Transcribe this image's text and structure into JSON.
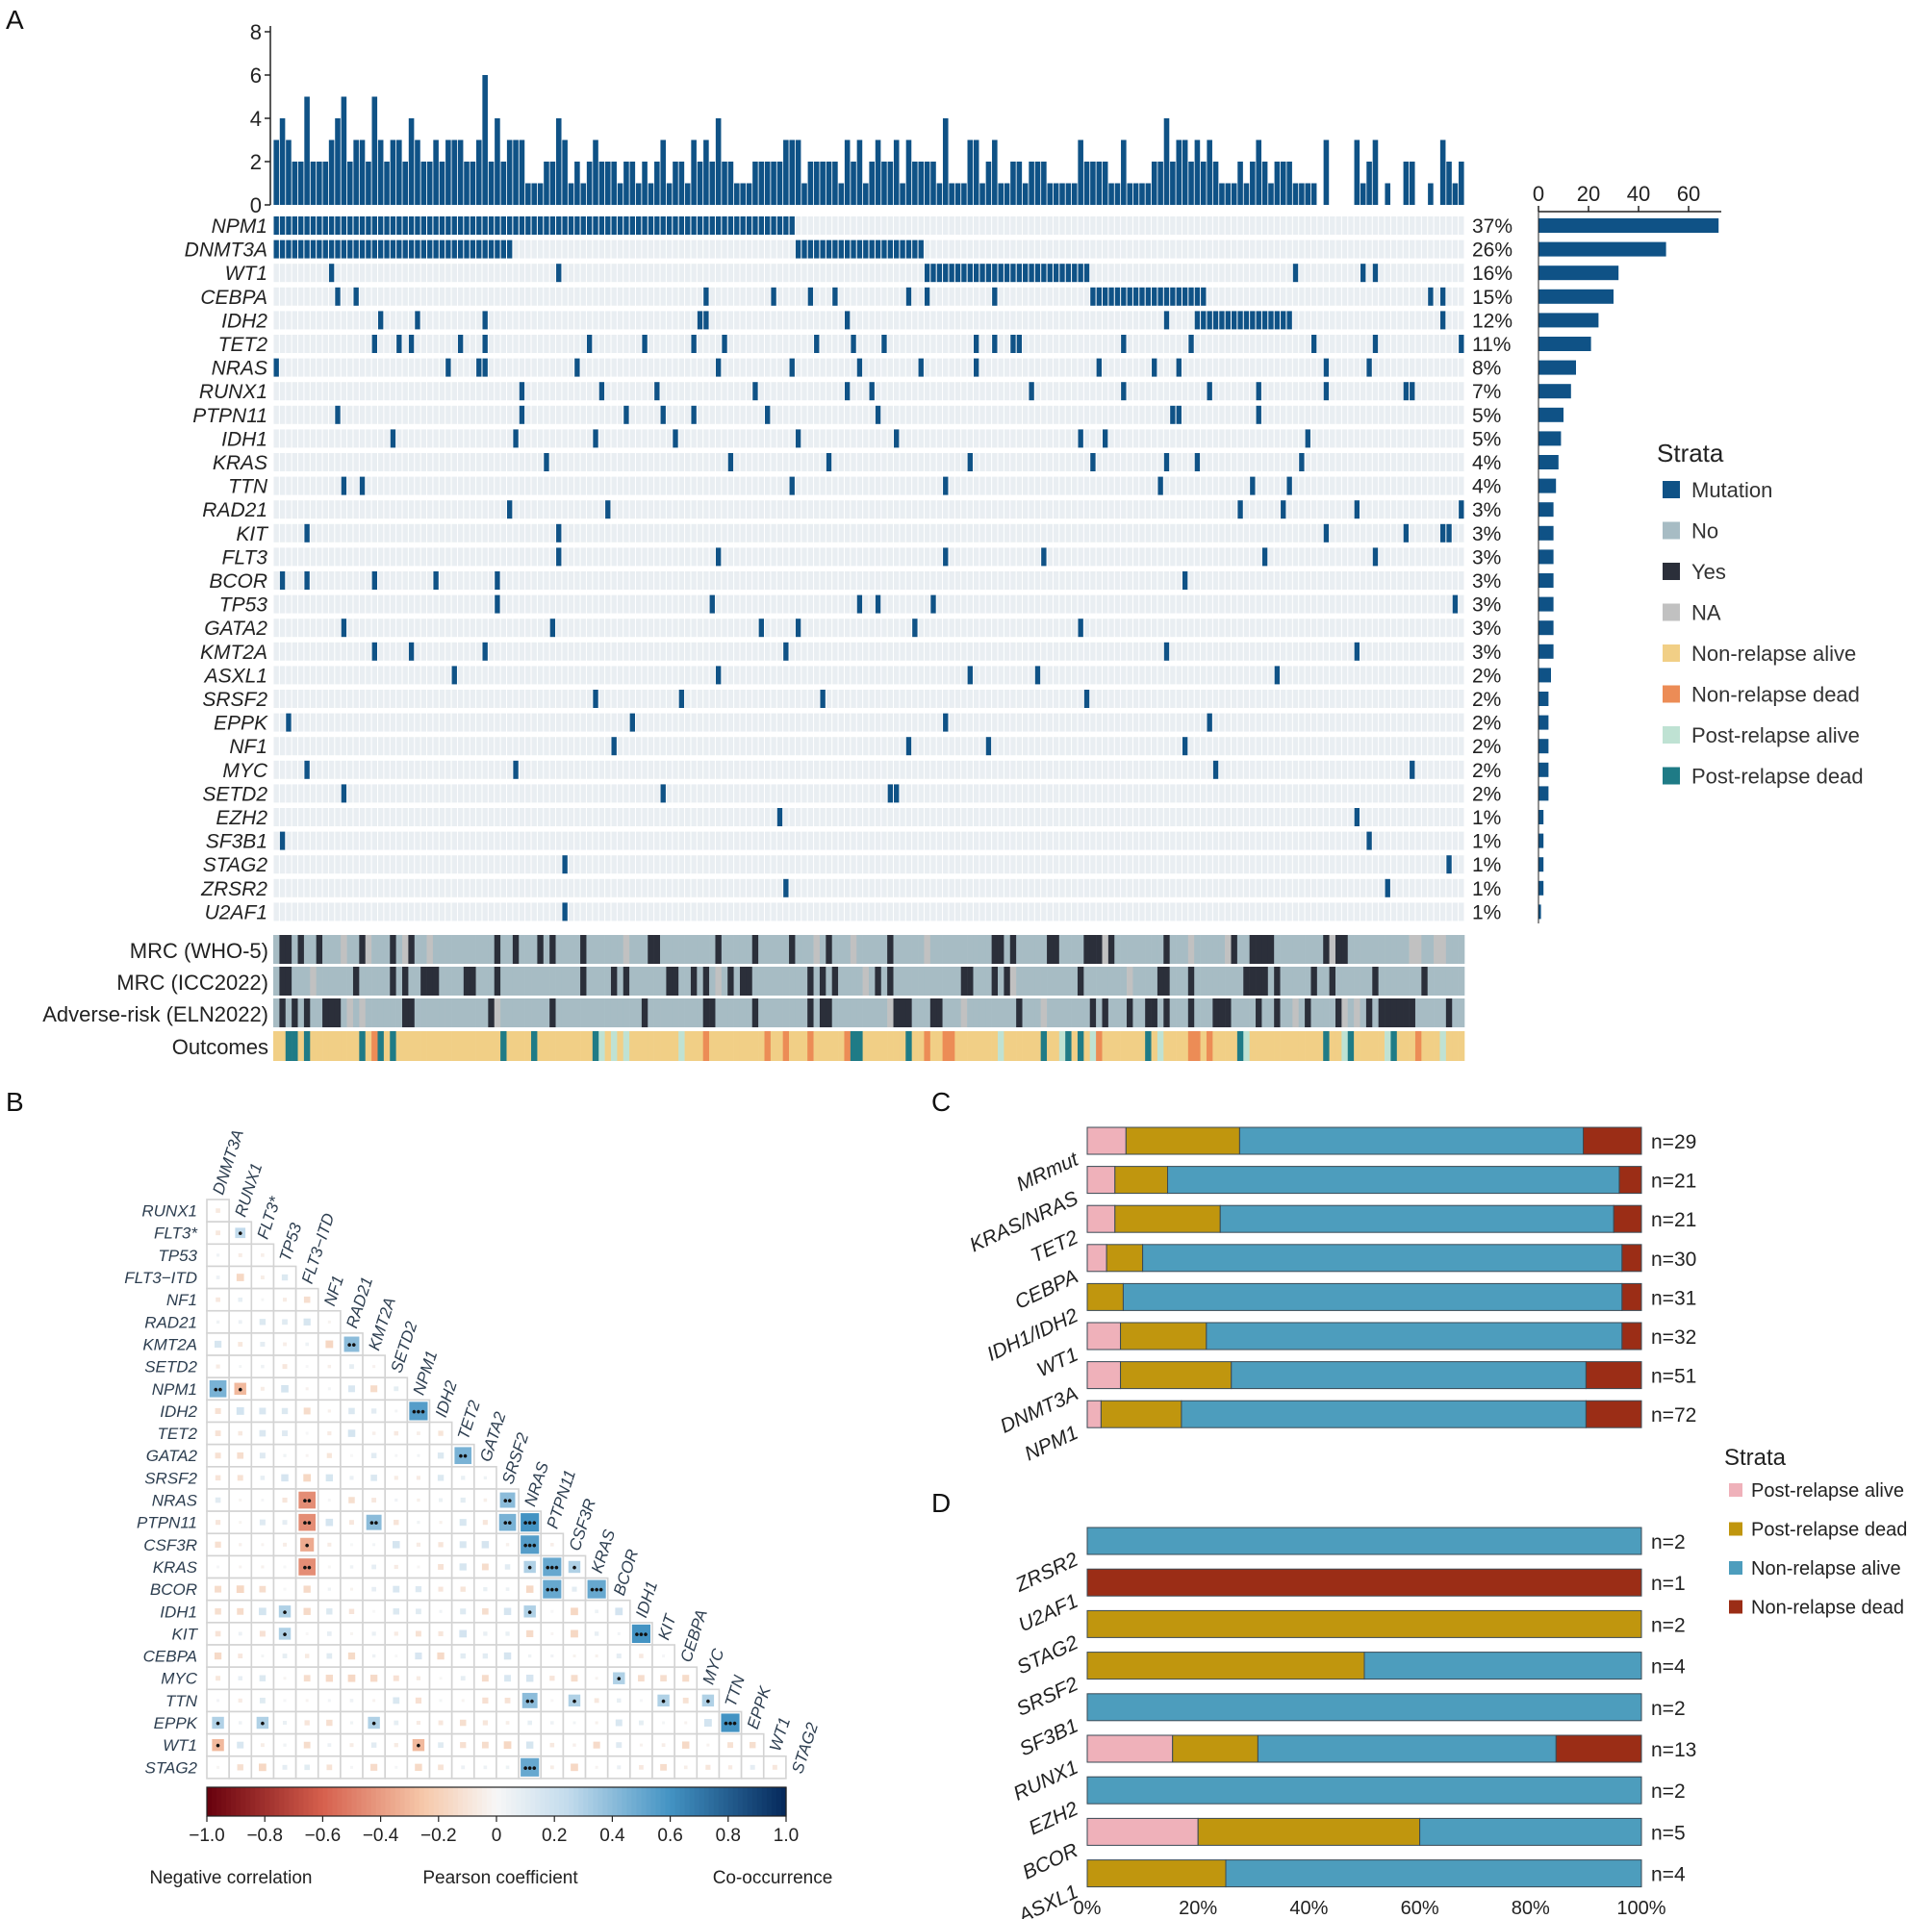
{
  "colors": {
    "mutation": "#0f5286",
    "no": "#a7bcc4",
    "yes": "#2b2f3a",
    "na": "#c1c1c1",
    "nonrelapse_alive_A": "#f1cf86",
    "nonrelapse_dead_A": "#ec8c56",
    "postrelapse_alive_A": "#bfe2d3",
    "postrelapse_dead_A": "#1f7b86",
    "empty_cell": "#e9eef2",
    "post_alive": "#efb1ba",
    "post_dead": "#c0960e",
    "non_alive": "#4d9dbd",
    "non_dead": "#9b2d16"
  },
  "panel_labels": [
    "A",
    "B",
    "C",
    "D"
  ],
  "panelA": {
    "tmb_axis_ticks": [
      "0",
      "2",
      "4",
      "6",
      "8"
    ],
    "freq_axis_ticks": [
      "0",
      "20",
      "40",
      "60"
    ],
    "genes": [
      "NPM1",
      "DNMT3A",
      "WT1",
      "CEBPA",
      "IDH2",
      "TET2",
      "NRAS",
      "RUNX1",
      "PTPN11",
      "IDH1",
      "KRAS",
      "TTN",
      "RAD21",
      "KIT",
      "FLT3",
      "BCOR",
      "TP53",
      "GATA2",
      "KMT2A",
      "ASXL1",
      "SRSF2",
      "EPPK",
      "NF1",
      "MYC",
      "SETD2",
      "EZH2",
      "SF3B1",
      "STAG2",
      "ZRSR2",
      "U2AF1"
    ],
    "percents": [
      "37%",
      "26%",
      "16%",
      "15%",
      "12%",
      "11%",
      "8%",
      "7%",
      "5%",
      "5%",
      "4%",
      "4%",
      "3%",
      "3%",
      "3%",
      "3%",
      "3%",
      "3%",
      "3%",
      "2%",
      "2%",
      "2%",
      "2%",
      "2%",
      "2%",
      "1%",
      "1%",
      "1%",
      "1%",
      "1%"
    ],
    "counts": [
      72,
      51,
      32,
      30,
      24,
      21,
      15,
      13,
      10,
      9,
      8,
      7,
      6,
      6,
      6,
      6,
      6,
      6,
      6,
      5,
      4,
      4,
      4,
      4,
      4,
      2,
      2,
      2,
      2,
      1
    ],
    "annotation_rows": [
      "MRC (WHO-5)",
      "MRC (ICC2022)",
      "Adverse-risk (ELN2022)",
      "Outcomes"
    ],
    "legend": {
      "title": "Strata",
      "items": [
        "Mutation",
        "No",
        "Yes",
        "NA",
        "Non-relapse alive",
        "Non-relapse dead",
        "Post-relapse alive",
        "Post-relapse dead"
      ]
    }
  },
  "panelB": {
    "genes": [
      "DNMT3A",
      "RUNX1",
      "FLT3*",
      "TP53",
      "FLT3−ITD",
      "NF1",
      "RAD21",
      "KMT2A",
      "SETD2",
      "NPM1",
      "IDH2",
      "TET2",
      "GATA2",
      "SRSF2",
      "NRAS",
      "PTPN11",
      "CSF3R",
      "KRAS",
      "BCOR",
      "IDH1",
      "KIT",
      "CEBPA",
      "MYC",
      "TTN",
      "EPPK",
      "WT1",
      "STAG2"
    ],
    "colorbar_ticks": [
      "−1.0",
      "−0.8",
      "−0.6",
      "−0.4",
      "−0.2",
      "0",
      "0.2",
      "0.4",
      "0.6",
      "0.8",
      "1.0"
    ],
    "caption_left": "Negative correlation",
    "caption_mid": "Pearson coefficient",
    "caption_right": "Co-occurrence",
    "sig_cells": [
      {
        "r": "NPM1",
        "c": "DNMT3A",
        "v": 0.45,
        "s": "••"
      },
      {
        "r": "NPM1",
        "c": "RUNX1",
        "v": -0.3,
        "s": "•"
      },
      {
        "r": "FLT3*",
        "c": "RUNX1",
        "v": 0.25,
        "s": "•"
      },
      {
        "r": "KMT2A",
        "c": "RAD21",
        "v": 0.4,
        "s": "••"
      },
      {
        "r": "IDH2",
        "c": "NPM1",
        "v": 0.55,
        "s": "•••"
      },
      {
        "r": "GATA2",
        "c": "TET2",
        "v": 0.45,
        "s": "••"
      },
      {
        "r": "NRAS",
        "c": "FLT3−ITD",
        "v": -0.45,
        "s": "••"
      },
      {
        "r": "NRAS",
        "c": "SRSF2",
        "v": 0.4,
        "s": "••"
      },
      {
        "r": "PTPN11",
        "c": "FLT3−ITD",
        "v": -0.45,
        "s": "••"
      },
      {
        "r": "PTPN11",
        "c": "KMT2A",
        "v": 0.4,
        "s": "••"
      },
      {
        "r": "PTPN11",
        "c": "SRSF2",
        "v": 0.45,
        "s": "••"
      },
      {
        "r": "PTPN11",
        "c": "NRAS",
        "v": 0.6,
        "s": "•••"
      },
      {
        "r": "CSF3R",
        "c": "FLT3−ITD",
        "v": -0.35,
        "s": "•"
      },
      {
        "r": "CSF3R",
        "c": "NRAS",
        "v": 0.55,
        "s": "•••"
      },
      {
        "r": "KRAS",
        "c": "FLT3−ITD",
        "v": -0.45,
        "s": "••"
      },
      {
        "r": "KRAS",
        "c": "NRAS",
        "v": 0.3,
        "s": "•"
      },
      {
        "r": "KRAS",
        "c": "PTPN11",
        "v": 0.5,
        "s": "•••"
      },
      {
        "r": "KRAS",
        "c": "CSF3R",
        "v": 0.3,
        "s": "•"
      },
      {
        "r": "BCOR",
        "c": "PTPN11",
        "v": 0.5,
        "s": "•••"
      },
      {
        "r": "BCOR",
        "c": "KRAS",
        "v": 0.5,
        "s": "•••"
      },
      {
        "r": "IDH1",
        "c": "TP53",
        "v": 0.3,
        "s": "•"
      },
      {
        "r": "IDH1",
        "c": "NRAS",
        "v": 0.3,
        "s": "•"
      },
      {
        "r": "KIT",
        "c": "TP53",
        "v": 0.3,
        "s": "•"
      },
      {
        "r": "KIT",
        "c": "IDH1",
        "v": 0.6,
        "s": "•••"
      },
      {
        "r": "MYC",
        "c": "BCOR",
        "v": 0.3,
        "s": "•"
      },
      {
        "r": "TTN",
        "c": "NRAS",
        "v": 0.4,
        "s": "••"
      },
      {
        "r": "TTN",
        "c": "CSF3R",
        "v": 0.3,
        "s": "•"
      },
      {
        "r": "TTN",
        "c": "KIT",
        "v": 0.3,
        "s": "•"
      },
      {
        "r": "TTN",
        "c": "MYC",
        "v": 0.3,
        "s": "•"
      },
      {
        "r": "EPPK",
        "c": "DNMT3A",
        "v": 0.3,
        "s": "•"
      },
      {
        "r": "EPPK",
        "c": "FLT3*",
        "v": 0.3,
        "s": "•"
      },
      {
        "r": "EPPK",
        "c": "KMT2A",
        "v": 0.3,
        "s": "•"
      },
      {
        "r": "EPPK",
        "c": "TTN",
        "v": 0.6,
        "s": "•••"
      },
      {
        "r": "WT1",
        "c": "DNMT3A",
        "v": -0.3,
        "s": "•"
      },
      {
        "r": "WT1",
        "c": "NPM1",
        "v": -0.3,
        "s": "•"
      },
      {
        "r": "STAG2",
        "c": "NRAS",
        "v": 0.5,
        "s": "•••"
      }
    ]
  },
  "panelC": {
    "type": "bar",
    "stacked": true,
    "categories": [
      "MRmut",
      "KRAS/NRAS",
      "TET2",
      "CEBPA",
      "IDH1/IDH2",
      "WT1",
      "DNMT3A",
      "NPM1"
    ],
    "n_labels": [
      "n=29",
      "n=21",
      "n=21",
      "n=30",
      "n=31",
      "n=32",
      "n=51",
      "n=72"
    ],
    "series": [
      {
        "name": "Post-relapse alive",
        "values": [
          7,
          5,
          5,
          3.5,
          0,
          6,
          6,
          2.5
        ]
      },
      {
        "name": "Post-relapse dead",
        "values": [
          20.5,
          9.5,
          19,
          6.5,
          6.5,
          15.5,
          20,
          14.5
        ]
      },
      {
        "name": "Non-relapse alive",
        "values": [
          62,
          81.5,
          71,
          86.5,
          90,
          75,
          64,
          73
        ]
      },
      {
        "name": "Non-relapse dead",
        "values": [
          10.5,
          4,
          5,
          3.5,
          3.5,
          3.5,
          10,
          10
        ]
      }
    ]
  },
  "panelD": {
    "type": "bar",
    "stacked": true,
    "categories": [
      "ZRSR2",
      "U2AF1",
      "STAG2",
      "SRSF2",
      "SF3B1",
      "RUNX1",
      "EZH2",
      "BCOR",
      "ASXL1"
    ],
    "n_labels": [
      "n=2",
      "n=1",
      "n=2",
      "n=4",
      "n=2",
      "n=13",
      "n=2",
      "n=5",
      "n=4"
    ],
    "series": [
      {
        "name": "Post-relapse alive",
        "values": [
          0,
          0,
          0,
          0,
          0,
          15.4,
          0,
          20,
          0
        ]
      },
      {
        "name": "Post-relapse dead",
        "values": [
          0,
          0,
          100,
          50,
          0,
          15.4,
          0,
          40,
          25
        ]
      },
      {
        "name": "Non-relapse alive",
        "values": [
          100,
          0,
          0,
          50,
          100,
          53.8,
          100,
          40,
          75
        ]
      },
      {
        "name": "Non-relapse dead",
        "values": [
          0,
          100,
          0,
          0,
          0,
          15.4,
          0,
          0,
          0
        ]
      }
    ],
    "xticks": [
      "0%",
      "20%",
      "40%",
      "60%",
      "80%",
      "100%"
    ],
    "xlim": [
      0,
      100
    ]
  },
  "legendCD": {
    "title": "Strata",
    "items": [
      "Post-relapse alive",
      "Post-relapse dead",
      "Non-relapse alive",
      "Non-relapse dead"
    ]
  }
}
